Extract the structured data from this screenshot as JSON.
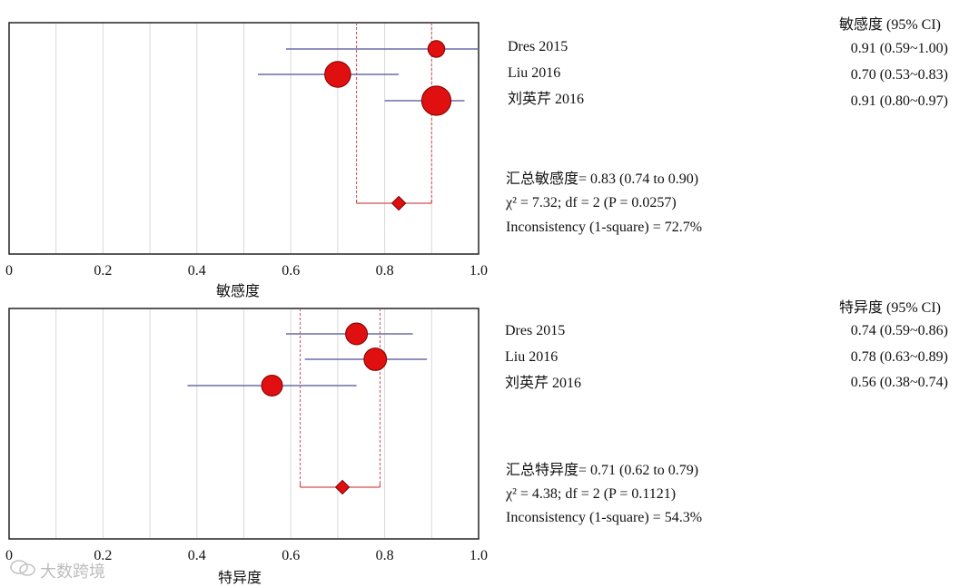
{
  "chart_data": [
    {
      "type": "forest",
      "xlabel": "敏感度",
      "xlim": [
        0,
        1.0
      ],
      "x_ticks": [
        "0",
        "0.2",
        "0.4",
        "0.6",
        "0.8",
        "1.0"
      ],
      "x_tick_values": [
        0,
        0.2,
        0.4,
        0.6,
        0.8,
        1.0
      ],
      "ci_header": "敏感度 (95% CI)",
      "studies": [
        {
          "name": "Dres 2015",
          "estimate": 0.91,
          "lower": 0.59,
          "upper": 1.0,
          "ci_text": "0.91 (0.59~1.00)",
          "weight": 1.0
        },
        {
          "name": "Liu 2016",
          "estimate": 0.7,
          "lower": 0.53,
          "upper": 0.83,
          "ci_text": "0.70 (0.53~0.83)",
          "weight": 1.55
        },
        {
          "name": "刘英芹 2016",
          "estimate": 0.91,
          "lower": 0.8,
          "upper": 0.97,
          "ci_text": "0.91 (0.80~0.97)",
          "weight": 1.75
        }
      ],
      "pooled": {
        "estimate": 0.83,
        "lower": 0.74,
        "upper": 0.9
      },
      "summary": [
        "汇总敏感度= 0.83 (0.74 to 0.90)",
        "χ² = 7.32; df = 2 (P = 0.0257)",
        "Inconsistency (1-square) = 72.7%"
      ]
    },
    {
      "type": "forest",
      "xlabel": "特异度",
      "xlim": [
        0,
        1.0
      ],
      "x_ticks": [
        "0",
        "0.2",
        "0.4",
        "0.6",
        "0.8",
        "1.0"
      ],
      "x_tick_values": [
        0,
        0.2,
        0.4,
        0.6,
        0.8,
        1.0
      ],
      "ci_header": "特异度 (95% CI)",
      "studies": [
        {
          "name": "Dres 2015",
          "estimate": 0.74,
          "lower": 0.59,
          "upper": 0.86,
          "ci_text": "0.74 (0.59~0.86)",
          "weight": 1.3
        },
        {
          "name": "Liu 2016",
          "estimate": 0.78,
          "lower": 0.63,
          "upper": 0.89,
          "ci_text": "0.78 (0.63~0.89)",
          "weight": 1.35
        },
        {
          "name": "刘英芹 2016",
          "estimate": 0.56,
          "lower": 0.38,
          "upper": 0.74,
          "ci_text": "0.56 (0.38~0.74)",
          "weight": 1.25
        }
      ],
      "pooled": {
        "estimate": 0.71,
        "lower": 0.62,
        "upper": 0.79
      },
      "summary": [
        "汇总特异度= 0.71 (0.62 to 0.79)",
        "χ² = 4.38; df = 2 (P = 0.1121)",
        "Inconsistency (1-square) = 54.3%"
      ]
    }
  ],
  "watermark": {
    "text": "大数跨境",
    "icon": "wechat-logo-icon"
  },
  "colors": {
    "marker": "#e01010",
    "marker_stroke": "#7a0000",
    "ci_line": "#6b6ba8",
    "pooled_line": "#d05050",
    "grid": "#d8d8d8",
    "frame": "#222222"
  }
}
